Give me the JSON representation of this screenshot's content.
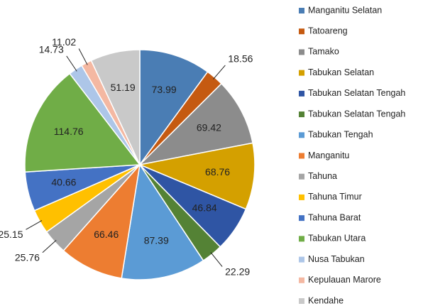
{
  "chart_data": {
    "type": "pie",
    "categories": [
      "Manganitu Selatan",
      "Tatoareng",
      "Tamako",
      "Tabukan Selatan",
      "Tabukan Selatan Tengah",
      "Tabukan Selatan Tengah",
      "Tabukan Tengah",
      "Manganitu",
      "Tahuna",
      "Tahuna Timur",
      "Tahuna Barat",
      "Tabukan Utara",
      "Nusa Tabukan",
      "Kepulauan Marore",
      "Kendahe"
    ],
    "values": [
      73.99,
      18.56,
      69.42,
      68.76,
      46.84,
      22.29,
      87.39,
      66.46,
      25.76,
      25.15,
      40.66,
      114.76,
      14.73,
      11.02,
      51.19
    ],
    "colors": [
      "#4a7db4",
      "#c55a11",
      "#8c8c8c",
      "#d4a000",
      "#2f55a4",
      "#548235",
      "#5b9bd5",
      "#ed7d31",
      "#a5a5a5",
      "#ffc000",
      "#4472c4",
      "#70ad47",
      "#adc6e8",
      "#f4b8a2",
      "#c9c9c9"
    ],
    "legend": "right"
  }
}
